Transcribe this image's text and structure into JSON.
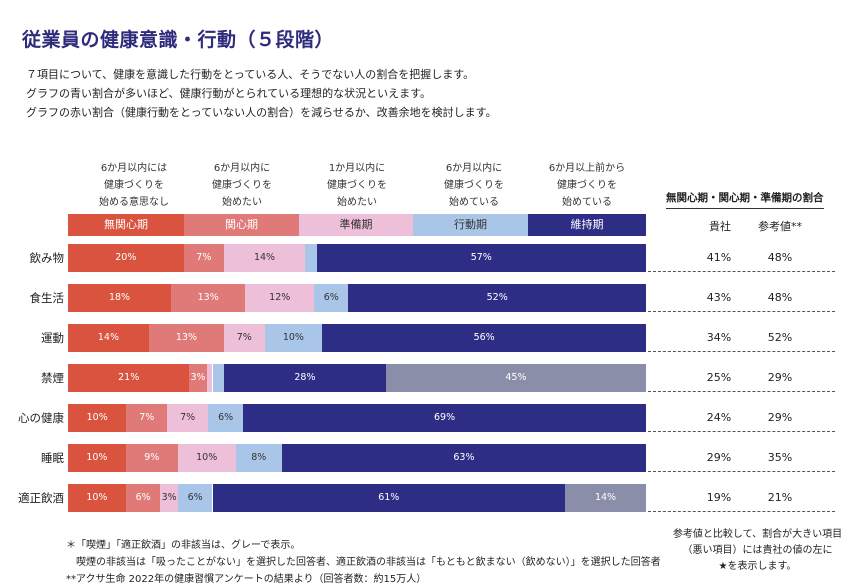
{
  "title": "従業員の健康意識・行動（５段階）",
  "description": [
    "７項目について、健康を意識した行動をとっている人、そうでない人の割合を把握します。",
    "グラフの青い割合が多いほど、健康行動がとられている理想的な状況といえます。",
    "グラフの赤い割合（健康行動をとっていない人の割合）を減らせるか、改善余地を検討します。"
  ],
  "stage_descriptions": [
    [
      "6か月以内には",
      "健康づくりを",
      "始める意思なし"
    ],
    [
      "6か月以内に",
      "健康づくりを",
      "始めたい"
    ],
    [
      "1か月以内に",
      "健康づくりを",
      "始めたい"
    ],
    [
      "6か月以内に",
      "健康づくりを",
      "始めている"
    ],
    [
      "6か月以上前から",
      "健康づくりを",
      "始めている"
    ]
  ],
  "colors": {
    "無関心期": "#d9533f",
    "関心期": "#e07a78",
    "準備期": "#eebfd8",
    "行動期": "#a9c6e8",
    "維持期": "#2e2d86",
    "非該当": "#8b8ea8",
    "title": "#2f2b7c"
  },
  "right_panel": {
    "header": "無関心期・関心期・準備期の割合",
    "col_company": "貴社",
    "col_reference": "参考値**"
  },
  "chart_data": {
    "type": "bar",
    "orientation": "horizontal",
    "stacked": true,
    "normalized": true,
    "xlim": [
      0,
      100
    ],
    "categories": [
      "飲み物",
      "食生活",
      "運動",
      "禁煙",
      "心の健康",
      "睡眠",
      "適正飲酒"
    ],
    "series": [
      {
        "name": "無関心期",
        "values": [
          20,
          18,
          14,
          21,
          10,
          10,
          10
        ],
        "labels": [
          "20%",
          "18%",
          "14%",
          "21%",
          "10%",
          "10%",
          "10%"
        ]
      },
      {
        "name": "関心期",
        "values": [
          7,
          13,
          13,
          3,
          7,
          9,
          6
        ],
        "labels": [
          "7%",
          "13%",
          "13%",
          "3%",
          "7%",
          "9%",
          "6%"
        ]
      },
      {
        "name": "準備期",
        "values": [
          14,
          12,
          7,
          1,
          7,
          10,
          3
        ],
        "labels": [
          "14%",
          "12%",
          "7%",
          "",
          "7%",
          "10%",
          "3%"
        ]
      },
      {
        "name": "行動期",
        "values": [
          2,
          6,
          10,
          2,
          6,
          8,
          6
        ],
        "labels": [
          "",
          "6%",
          "10%",
          "",
          "6%",
          "8%",
          "6%"
        ]
      },
      {
        "name": "維持期",
        "values": [
          57,
          52,
          56,
          28,
          69,
          63,
          61
        ],
        "labels": [
          "57%",
          "52%",
          "56%",
          "28%",
          "69%",
          "63%",
          "61%"
        ]
      },
      {
        "name": "非該当",
        "values": [
          0,
          0,
          0,
          45,
          0,
          0,
          14
        ],
        "labels": [
          "",
          "",
          "",
          "45%",
          "",
          "",
          "14%"
        ]
      }
    ],
    "company_ratio": [
      "41%",
      "43%",
      "34%",
      "25%",
      "24%",
      "29%",
      "19%"
    ],
    "reference_ratio": [
      "48%",
      "48%",
      "52%",
      "29%",
      "29%",
      "35%",
      "21%"
    ]
  },
  "footnotes": [
    "＊「喫煙」「適正飲酒」の非該当は、グレーで表示。",
    "喫煙の非該当は「吸ったことがない」を選択した回答者、適正飲酒の非該当は「もともと飲まない（飲めない）」を選択した回答者",
    "**アクサ生命 2022年の健康習慣アンケートの結果より（回答者数：約15万人）"
  ],
  "note": [
    "参考値と比較して、割合が大きい項目",
    "（悪い項目）には貴社の値の左に",
    "★を表示します。"
  ]
}
